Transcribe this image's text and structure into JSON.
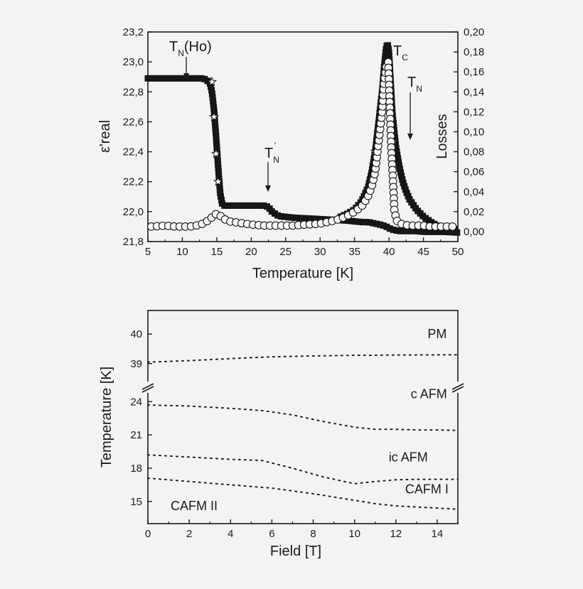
{
  "chart_data": [
    {
      "type": "scatter",
      "xlabel": "Temperature [K]",
      "ylabel_left": "ε'real",
      "ylabel_right": "Losses",
      "xlim": [
        5,
        50
      ],
      "ylim_left": [
        21.8,
        23.2
      ],
      "ylim_right": [
        -0.01,
        0.2
      ],
      "x_ticks": [
        "5",
        "10",
        "15",
        "20",
        "25",
        "30",
        "35",
        "40",
        "45",
        "50"
      ],
      "y_left_ticks": [
        "21,8",
        "22,0",
        "22,2",
        "22,4",
        "22,6",
        "22,8",
        "23,0",
        "23,2"
      ],
      "y_right_ticks": [
        "0,00",
        "0,02",
        "0,04",
        "0,06",
        "0,08",
        "0,10",
        "0,12",
        "0,14",
        "0,16",
        "0,18",
        "0,20"
      ],
      "annotations": [
        {
          "main": "T",
          "sub": "N",
          "suffix": "(Ho)",
          "x": 10.5
        },
        {
          "main": "T",
          "sub": "N",
          "sup": "'",
          "x": 22.5
        },
        {
          "main": "T",
          "sub": "C",
          "x": 40.2
        },
        {
          "main": "T",
          "sub": "N",
          "x": 43.2
        }
      ],
      "series": [
        {
          "marker": "filled-square",
          "axis": "left",
          "x": [
            5,
            8,
            10,
            12,
            13,
            13.5,
            14,
            14.3,
            14.6,
            14.9,
            15.2,
            15.5,
            15.8,
            16,
            16.5,
            17,
            18,
            20,
            22,
            22.5,
            23,
            24,
            26,
            28,
            30,
            32,
            34,
            35,
            36,
            37,
            37.5,
            38,
            38.5,
            39,
            39.3,
            39.6,
            39.8,
            40,
            40.2,
            40.5,
            41,
            41.5,
            42,
            43,
            44,
            45,
            46,
            47,
            48,
            50
          ],
          "y": [
            22.89,
            22.89,
            22.89,
            22.89,
            22.89,
            22.88,
            22.86,
            22.8,
            22.68,
            22.5,
            22.3,
            22.12,
            22.05,
            22.04,
            22.04,
            22.04,
            22.04,
            22.04,
            22.04,
            22.03,
            22.0,
            21.97,
            21.96,
            21.955,
            21.95,
            21.945,
            21.94,
            21.935,
            21.93,
            21.93,
            21.925,
            21.92,
            21.915,
            21.91,
            21.905,
            21.9,
            21.895,
            21.89,
            21.885,
            21.88,
            21.875,
            21.87,
            21.87,
            21.87,
            21.87,
            21.865,
            21.865,
            21.865,
            21.865,
            21.86
          ]
        },
        {
          "marker": "filled-square",
          "axis": "right",
          "x": [
            33,
            34,
            35,
            36,
            37,
            37.5,
            38,
            38.5,
            39,
            39.3,
            39.6,
            39.8,
            40,
            40.2,
            40.5,
            41,
            41.5,
            42,
            42.5,
            43,
            44,
            45,
            46,
            47,
            48,
            50
          ],
          "y": [
            0.015,
            0.018,
            0.022,
            0.03,
            0.045,
            0.06,
            0.08,
            0.11,
            0.14,
            0.165,
            0.185,
            0.188,
            0.18,
            0.155,
            0.118,
            0.085,
            0.065,
            0.05,
            0.04,
            0.032,
            0.022,
            0.015,
            0.01,
            0.006,
            0.004,
            0.002
          ]
        },
        {
          "marker": "open-star",
          "axis": "right",
          "x": [
            14.3,
            14.6,
            14.9,
            15.2,
            37.5,
            38,
            38.5,
            39,
            39.3,
            39.6,
            40.3,
            40.6
          ],
          "y": [
            0.15,
            0.115,
            0.078,
            0.05,
            0.05,
            0.08,
            0.1,
            0.12,
            0.14,
            0.16,
            0.11,
            0.09
          ]
        },
        {
          "marker": "open-circle",
          "axis": "right",
          "x": [
            5.5,
            7.5,
            9,
            10,
            11,
            12,
            13,
            14,
            14.5,
            15,
            15.5,
            16,
            16.5,
            17,
            18,
            19,
            20,
            22,
            24,
            26,
            28,
            30,
            32,
            33,
            34,
            35,
            36,
            36.5,
            37,
            37.5,
            38,
            38.5,
            39,
            39.3,
            39.6,
            39.9,
            40.3,
            40.8,
            41.2,
            42,
            43,
            44,
            45,
            46,
            47,
            48,
            50
          ],
          "y": [
            0.005,
            0.006,
            0.005,
            0.005,
            0.005,
            0.006,
            0.008,
            0.012,
            0.016,
            0.018,
            0.016,
            0.013,
            0.011,
            0.01,
            0.009,
            0.008,
            0.007,
            0.006,
            0.006,
            0.006,
            0.007,
            0.008,
            0.011,
            0.013,
            0.016,
            0.02,
            0.025,
            0.03,
            0.036,
            0.045,
            0.06,
            0.09,
            0.12,
            0.15,
            0.165,
            0.17,
            0.09,
            0.02,
            0.01,
            0.007,
            0.006,
            0.006,
            0.006,
            0.005,
            0.005,
            0.005,
            0.005
          ]
        }
      ]
    },
    {
      "type": "line",
      "xlabel": "Field [T]",
      "ylabel": "Temperature [K]",
      "xlim": [
        0,
        15
      ],
      "broken_y_axis": true,
      "ylim_lower": [
        13,
        25.3
      ],
      "ylim_upper": [
        38.2,
        40.8
      ],
      "x_ticks": [
        "0",
        "2",
        "4",
        "6",
        "8",
        "10",
        "12",
        "14"
      ],
      "y_ticks_lower": [
        "15",
        "18",
        "21",
        "24"
      ],
      "y_ticks_upper": [
        "39",
        "40"
      ],
      "region_labels": [
        {
          "text": "PM",
          "x": 14,
          "y": 40.0,
          "panel": "upper"
        },
        {
          "text": "c AFM",
          "x": 13.6,
          "y": 24.7,
          "panel": "lower"
        },
        {
          "text": "ic AFM",
          "x": 12.6,
          "y": 19.0,
          "panel": "lower"
        },
        {
          "text": "CAFM I",
          "x": 13.5,
          "y": 16.1,
          "panel": "lower"
        },
        {
          "text": "CAFM II",
          "x": 1.1,
          "y": 14.6,
          "panel": "lower"
        }
      ],
      "series": [
        {
          "panel": "upper",
          "x": [
            0,
            2,
            4,
            6,
            8,
            10,
            12,
            15
          ],
          "y": [
            39.05,
            39.1,
            39.17,
            39.23,
            39.26,
            39.28,
            39.29,
            39.3
          ]
        },
        {
          "panel": "lower",
          "x": [
            0,
            2,
            4,
            5.5,
            7,
            8.5,
            10,
            11,
            12,
            13,
            14,
            15
          ],
          "y": [
            23.7,
            23.6,
            23.4,
            23.2,
            22.8,
            22.2,
            21.7,
            21.5,
            21.5,
            21.45,
            21.45,
            21.4
          ]
        },
        {
          "panel": "lower",
          "x": [
            0,
            2,
            4,
            5.5,
            7,
            8.5,
            10,
            11,
            12,
            13,
            14,
            15
          ],
          "y": [
            19.2,
            19.0,
            18.8,
            18.7,
            18.0,
            17.2,
            16.6,
            16.8,
            16.95,
            17.0,
            17.0,
            17.0
          ]
        },
        {
          "panel": "lower",
          "x": [
            0,
            2,
            4,
            6,
            8,
            10,
            11,
            12,
            13,
            14,
            15
          ],
          "y": [
            17.1,
            16.8,
            16.5,
            16.2,
            15.7,
            15.1,
            14.8,
            14.6,
            14.5,
            14.4,
            14.3
          ]
        }
      ]
    }
  ]
}
